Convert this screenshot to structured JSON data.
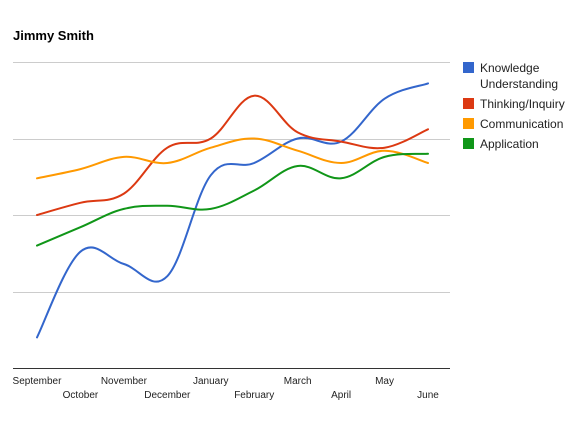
{
  "chart_data": {
    "type": "line",
    "title": "Jimmy Smith",
    "xlabel": "",
    "ylabel": "",
    "ylim": [
      0,
      100
    ],
    "grid": true,
    "legend_position": "right",
    "categories": [
      "September",
      "October",
      "November",
      "December",
      "January",
      "February",
      "March",
      "April",
      "May",
      "June"
    ],
    "series": [
      {
        "name": "Knowledge\nUnderstanding",
        "color": "#3366cc",
        "values": [
          10,
          38,
          34,
          30,
          63,
          67,
          75,
          74,
          88,
          93
        ]
      },
      {
        "name": "Thinking/Inquiry",
        "color": "#dc3912",
        "values": [
          50,
          54,
          57,
          72,
          75,
          89,
          77,
          74,
          72,
          78
        ]
      },
      {
        "name": "Communication",
        "color": "#ff9900",
        "values": [
          62,
          65,
          69,
          67,
          72,
          75,
          71,
          67,
          71,
          67
        ]
      },
      {
        "name": "Application",
        "color": "#109618",
        "values": [
          40,
          46,
          52,
          53,
          52,
          58,
          66,
          62,
          69,
          70
        ]
      }
    ]
  }
}
